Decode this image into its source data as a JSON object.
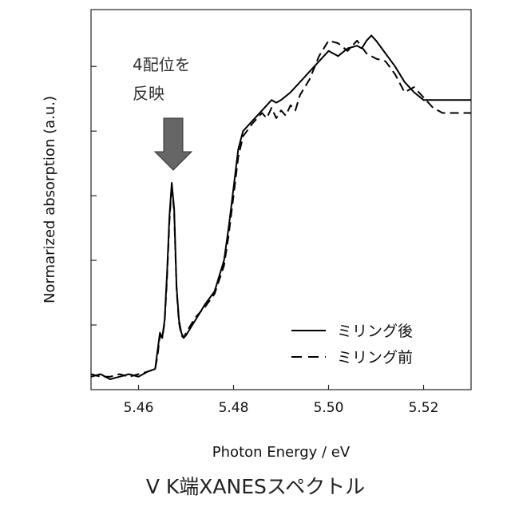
{
  "chart_data": {
    "type": "line",
    "title": "",
    "xlabel": "Photon Energy / eV",
    "ylabel": "Normarized absorption (a.u.)",
    "xlim": [
      5.45,
      5.53
    ],
    "ylim": [
      -0.05,
      1.42
    ],
    "x_ticks": [
      5.46,
      5.48,
      5.5,
      5.52
    ],
    "x_tick_labels": [
      "5.46",
      "5.48",
      "5.50",
      "5.52"
    ],
    "y_ticks": [
      0.2,
      0.45,
      0.7,
      0.95,
      1.2
    ],
    "y_tick_labels": [],
    "grid": false,
    "legend": "bottom-right",
    "series": [
      {
        "name": "ミリング後",
        "style": "solid",
        "color": "#000000",
        "points": [
          [
            5.45,
            0.0
          ],
          [
            5.452,
            0.01
          ],
          [
            5.454,
            -0.01
          ],
          [
            5.456,
            0.0
          ],
          [
            5.458,
            0.01
          ],
          [
            5.46,
            0.0
          ],
          [
            5.462,
            0.02
          ],
          [
            5.4635,
            0.03
          ],
          [
            5.464,
            0.1
          ],
          [
            5.4645,
            0.17
          ],
          [
            5.465,
            0.15
          ],
          [
            5.4655,
            0.22
          ],
          [
            5.466,
            0.4
          ],
          [
            5.4665,
            0.62
          ],
          [
            5.467,
            0.75
          ],
          [
            5.4675,
            0.65
          ],
          [
            5.468,
            0.35
          ],
          [
            5.4685,
            0.22
          ],
          [
            5.469,
            0.17
          ],
          [
            5.4695,
            0.15
          ],
          [
            5.47,
            0.16
          ],
          [
            5.471,
            0.19
          ],
          [
            5.472,
            0.22
          ],
          [
            5.474,
            0.28
          ],
          [
            5.476,
            0.33
          ],
          [
            5.478,
            0.45
          ],
          [
            5.479,
            0.58
          ],
          [
            5.48,
            0.73
          ],
          [
            5.481,
            0.88
          ],
          [
            5.482,
            0.95
          ],
          [
            5.484,
            0.99
          ],
          [
            5.486,
            1.03
          ],
          [
            5.488,
            1.07
          ],
          [
            5.489,
            1.06
          ],
          [
            5.49,
            1.07
          ],
          [
            5.492,
            1.1
          ],
          [
            5.494,
            1.14
          ],
          [
            5.496,
            1.18
          ],
          [
            5.498,
            1.22
          ],
          [
            5.5,
            1.26
          ],
          [
            5.502,
            1.24
          ],
          [
            5.504,
            1.27
          ],
          [
            5.506,
            1.28
          ],
          [
            5.507,
            1.27
          ],
          [
            5.508,
            1.3
          ],
          [
            5.509,
            1.32
          ],
          [
            5.51,
            1.3
          ],
          [
            5.512,
            1.25
          ],
          [
            5.514,
            1.2
          ],
          [
            5.516,
            1.14
          ],
          [
            5.518,
            1.1
          ],
          [
            5.52,
            1.07
          ],
          [
            5.522,
            1.07
          ],
          [
            5.525,
            1.07
          ],
          [
            5.53,
            1.07
          ]
        ]
      },
      {
        "name": "ミリング前",
        "style": "dashed",
        "color": "#000000",
        "points": [
          [
            5.45,
            0.01
          ],
          [
            5.452,
            0.0
          ],
          [
            5.454,
            0.0
          ],
          [
            5.456,
            0.01
          ],
          [
            5.458,
            0.0
          ],
          [
            5.46,
            0.01
          ],
          [
            5.462,
            0.02
          ],
          [
            5.4635,
            0.03
          ],
          [
            5.464,
            0.08
          ],
          [
            5.4645,
            0.16
          ],
          [
            5.465,
            0.15
          ],
          [
            5.4655,
            0.21
          ],
          [
            5.466,
            0.38
          ],
          [
            5.4665,
            0.6
          ],
          [
            5.467,
            0.74
          ],
          [
            5.4675,
            0.64
          ],
          [
            5.468,
            0.34
          ],
          [
            5.4685,
            0.21
          ],
          [
            5.469,
            0.16
          ],
          [
            5.4695,
            0.15
          ],
          [
            5.47,
            0.17
          ],
          [
            5.471,
            0.2
          ],
          [
            5.472,
            0.23
          ],
          [
            5.474,
            0.27
          ],
          [
            5.476,
            0.32
          ],
          [
            5.478,
            0.43
          ],
          [
            5.479,
            0.55
          ],
          [
            5.48,
            0.7
          ],
          [
            5.481,
            0.85
          ],
          [
            5.482,
            0.93
          ],
          [
            5.484,
            0.98
          ],
          [
            5.486,
            1.02
          ],
          [
            5.487,
            1.0
          ],
          [
            5.488,
            1.04
          ],
          [
            5.489,
            1.0
          ],
          [
            5.49,
            1.03
          ],
          [
            5.491,
            1.01
          ],
          [
            5.492,
            1.05
          ],
          [
            5.493,
            1.03
          ],
          [
            5.494,
            1.09
          ],
          [
            5.496,
            1.15
          ],
          [
            5.498,
            1.24
          ],
          [
            5.5,
            1.3
          ],
          [
            5.502,
            1.29
          ],
          [
            5.504,
            1.26
          ],
          [
            5.506,
            1.3
          ],
          [
            5.508,
            1.25
          ],
          [
            5.51,
            1.23
          ],
          [
            5.512,
            1.22
          ],
          [
            5.514,
            1.17
          ],
          [
            5.516,
            1.1
          ],
          [
            5.518,
            1.12
          ],
          [
            5.52,
            1.08
          ],
          [
            5.522,
            1.04
          ],
          [
            5.524,
            1.02
          ],
          [
            5.526,
            1.02
          ],
          [
            5.53,
            1.02
          ]
        ]
      }
    ],
    "annotations": [
      {
        "line1": "4配位を",
        "line2": "反映",
        "x": 5.467,
        "y": 0.75,
        "arrow": "down",
        "arrow_color": "#666666"
      }
    ]
  },
  "caption": "V K端XANESスペクトル"
}
